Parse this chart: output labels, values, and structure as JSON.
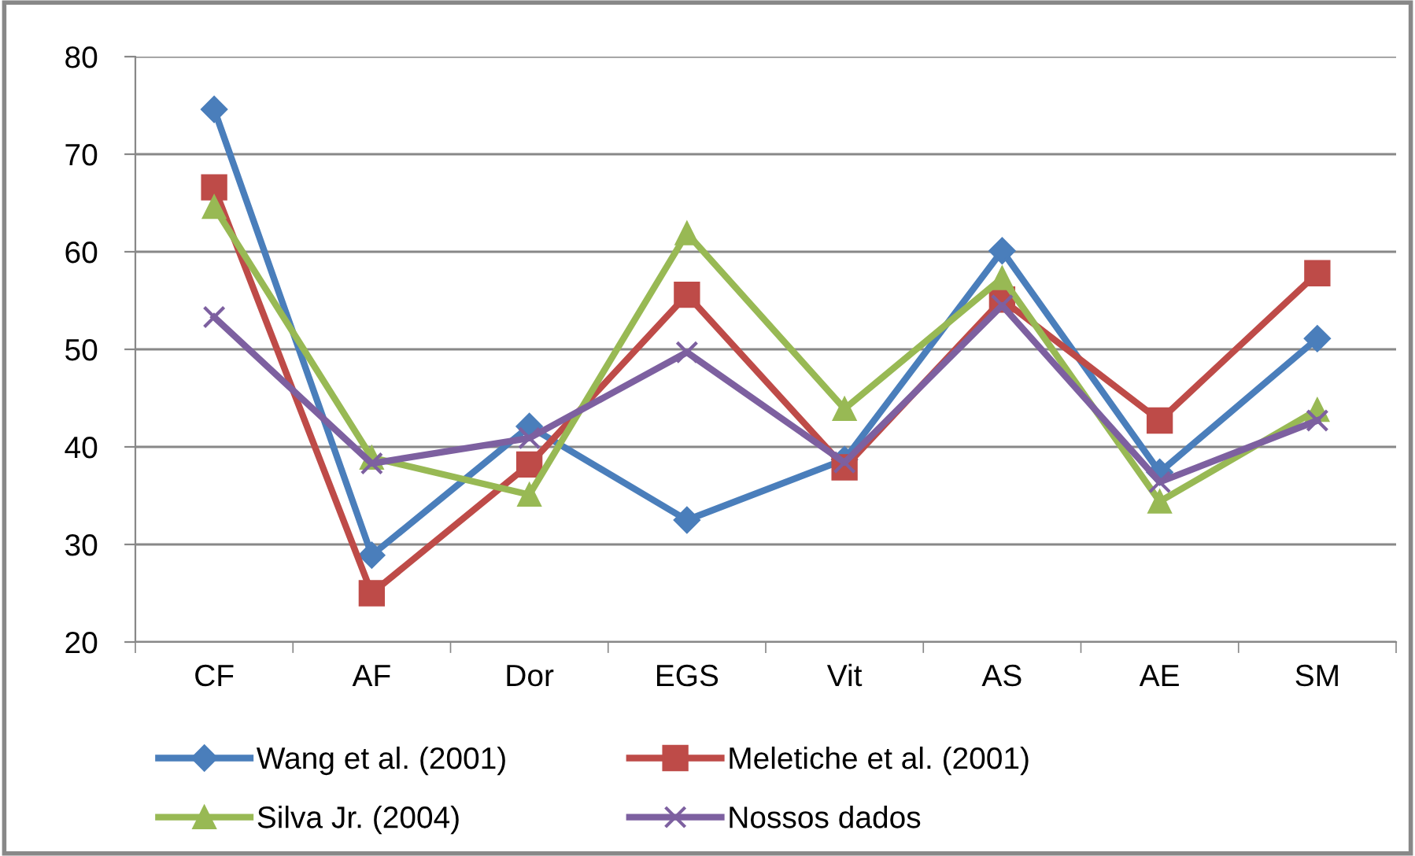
{
  "chart_data": {
    "type": "line",
    "categories": [
      "CF",
      "AF",
      "Dor",
      "EGS",
      "Vit",
      "AS",
      "AE",
      "SM"
    ],
    "series": [
      {
        "name": "Wang et al. (2001)",
        "color": "#4a7ebb",
        "marker": "diamond",
        "values": [
          74.6,
          28.9,
          42.1,
          32.5,
          38.7,
          60.1,
          37.4,
          51.1
        ]
      },
      {
        "name": "Meletiche et al. (2001)",
        "color": "#be4b48",
        "marker": "square",
        "values": [
          66.6,
          25.0,
          38.2,
          55.6,
          37.9,
          55.1,
          42.7,
          57.8
        ]
      },
      {
        "name": "Silva Jr. (2004)",
        "color": "#98b954",
        "marker": "triangle",
        "values": [
          64.6,
          38.9,
          35.1,
          61.9,
          43.9,
          57.3,
          34.4,
          43.8
        ]
      },
      {
        "name": "Nossos dados",
        "color": "#7d60a0",
        "marker": "cross",
        "values": [
          53.3,
          38.3,
          40.9,
          49.7,
          38.4,
          54.5,
          36.4,
          42.7
        ]
      }
    ],
    "ylim": [
      20,
      80
    ],
    "yticks": [
      20,
      30,
      40,
      50,
      60,
      70,
      80
    ],
    "grid": "y",
    "legend": "bottom",
    "line_style": "solid"
  }
}
